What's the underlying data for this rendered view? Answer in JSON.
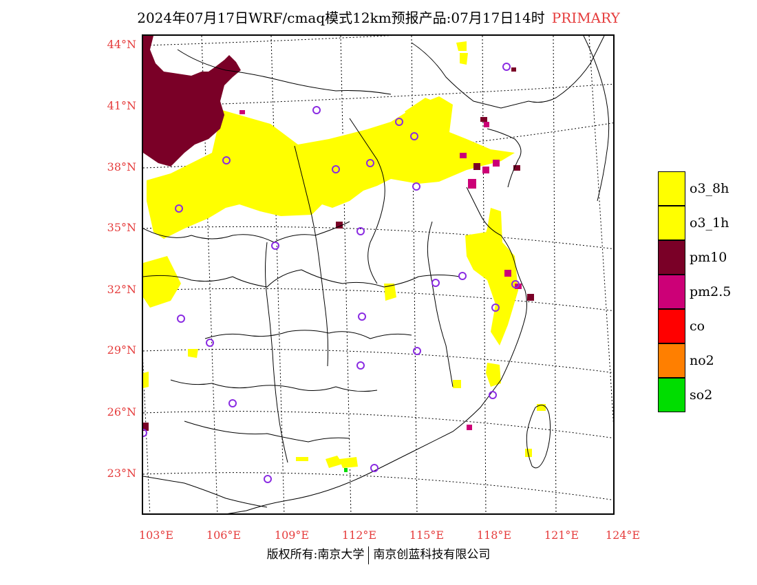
{
  "title": {
    "main": "2024年07月17日WRF/cmaq模式12km预报产品:07月17日14时",
    "tag": "PRIMARY"
  },
  "axes": {
    "lat_labels": [
      "44°N",
      "41°N",
      "38°N",
      "35°N",
      "32°N",
      "29°N",
      "26°N",
      "23°N"
    ],
    "lon_labels": [
      "103°E",
      "106°E",
      "109°E",
      "112°E",
      "115°E",
      "118°E",
      "121°E",
      "124°E"
    ]
  },
  "legend": [
    {
      "label": "o3_8h",
      "color": "#ffff00"
    },
    {
      "label": "o3_1h",
      "color": "#ffff00"
    },
    {
      "label": "pm10",
      "color": "#7a0027"
    },
    {
      "label": "pm2.5",
      "color": "#cc0077"
    },
    {
      "label": "co",
      "color": "#ff0000"
    },
    {
      "label": "no2",
      "color": "#ff7f00"
    },
    {
      "label": "so2",
      "color": "#00dd00"
    }
  ],
  "footer": {
    "left": "版权所有:南京大学",
    "right": "南京创蓝科技有限公司"
  },
  "colors": {
    "accent": "#e53b3b",
    "o3": "#ffff00",
    "pm10": "#7a0027",
    "pm25": "#cc0077",
    "station": "#8a2be2"
  }
}
